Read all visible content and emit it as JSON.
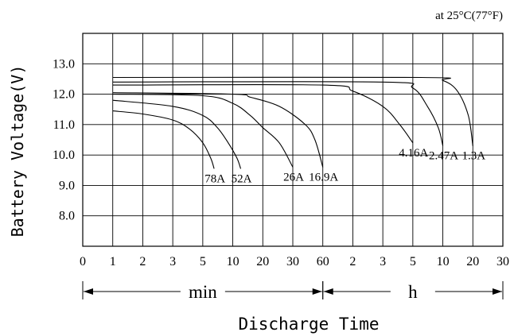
{
  "chart_data": {
    "type": "line",
    "condition": "at 25°C(77°F)",
    "xlabel": "Discharge Time",
    "ylabel": "Battery Voltage(V)",
    "ylim": [
      7.0,
      14.0
    ],
    "yticks": [
      "13.0",
      "12.0",
      "11.0",
      "10.0",
      "9.0",
      "8.0"
    ],
    "x_scale": "log",
    "xticks": [
      {
        "label": "0",
        "minutes": 0.5
      },
      {
        "label": "1",
        "minutes": 1
      },
      {
        "label": "2",
        "minutes": 2
      },
      {
        "label": "3",
        "minutes": 3
      },
      {
        "label": "5",
        "minutes": 5
      },
      {
        "label": "10",
        "minutes": 10
      },
      {
        "label": "20",
        "minutes": 20
      },
      {
        "label": "30",
        "minutes": 30
      },
      {
        "label": "60",
        "minutes": 60
      },
      {
        "label": "2",
        "minutes": 120
      },
      {
        "label": "3",
        "minutes": 180
      },
      {
        "label": "5",
        "minutes": 300
      },
      {
        "label": "10",
        "minutes": 600
      },
      {
        "label": "20",
        "minutes": 1200
      },
      {
        "label": "30",
        "minutes": 1800
      }
    ],
    "unit_ranges": [
      {
        "label": "min",
        "from_minutes": 0.5,
        "to_minutes": 60
      },
      {
        "label": "h",
        "from_minutes": 60,
        "to_minutes": 1800
      }
    ],
    "series": [
      {
        "name": "78A",
        "points": [
          [
            1,
            11.45
          ],
          [
            2,
            11.35
          ],
          [
            3,
            11.15
          ],
          [
            4,
            10.85
          ],
          [
            5,
            10.4
          ],
          [
            6,
            9.9
          ],
          [
            6.5,
            9.55
          ]
        ]
      },
      {
        "name": "52A",
        "points": [
          [
            1,
            11.8
          ],
          [
            3,
            11.6
          ],
          [
            5,
            11.3
          ],
          [
            7,
            10.9
          ],
          [
            9,
            10.4
          ],
          [
            11,
            9.9
          ],
          [
            12,
            9.55
          ]
        ]
      },
      {
        "name": "26A",
        "points": [
          [
            1,
            12.0
          ],
          [
            5,
            11.95
          ],
          [
            10,
            11.7
          ],
          [
            15,
            11.3
          ],
          [
            20,
            10.9
          ],
          [
            25,
            10.4
          ],
          [
            30,
            9.6
          ]
        ]
      },
      {
        "name": "16.9A",
        "points": [
          [
            1,
            12.05
          ],
          [
            10,
            12.0
          ],
          [
            15,
            11.9
          ],
          [
            25,
            11.6
          ],
          [
            40,
            11.0
          ],
          [
            50,
            10.5
          ],
          [
            60,
            9.6
          ]
        ]
      },
      {
        "name": "4.16A",
        "points": [
          [
            1,
            12.3
          ],
          [
            60,
            12.3
          ],
          [
            120,
            12.1
          ],
          [
            180,
            11.6
          ],
          [
            240,
            11.0
          ],
          [
            300,
            10.4
          ]
        ]
      },
      {
        "name": "2.47A",
        "points": [
          [
            1,
            12.4
          ],
          [
            180,
            12.4
          ],
          [
            300,
            12.2
          ],
          [
            420,
            11.6
          ],
          [
            540,
            10.9
          ],
          [
            600,
            10.3
          ]
        ]
      },
      {
        "name": "1.3A",
        "points": [
          [
            1,
            12.55
          ],
          [
            360,
            12.55
          ],
          [
            600,
            12.45
          ],
          [
            840,
            12.1
          ],
          [
            1080,
            11.3
          ],
          [
            1200,
            10.3
          ]
        ]
      }
    ],
    "colors": {
      "line": "#000000",
      "grid": "#000000",
      "background": "#ffffff"
    }
  }
}
